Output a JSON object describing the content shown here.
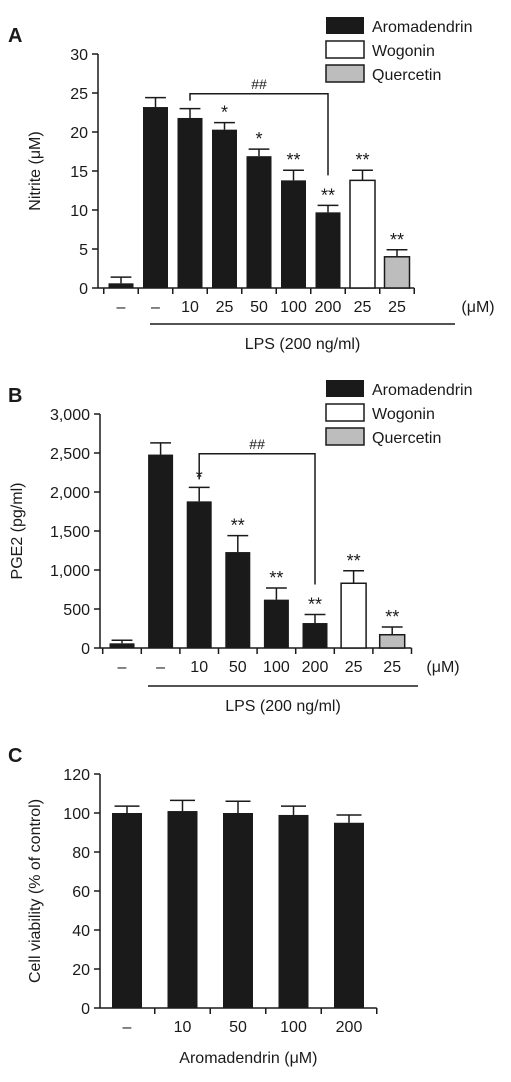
{
  "legend": {
    "entries": [
      {
        "label": "Aromadendrin",
        "color": "#1a1a1a"
      },
      {
        "label": "Wogonin",
        "color": "#ffffff"
      },
      {
        "label": "Quercetin",
        "color": "#bdbdbd"
      }
    ]
  },
  "chart_data": [
    {
      "panel": "A",
      "type": "bar",
      "ylabel": "Nitrite (μM)",
      "ylim": [
        0,
        30
      ],
      "yticks": [
        "0",
        "5",
        "10",
        "15",
        "20",
        "25",
        "30"
      ],
      "categories": [
        "–",
        "–",
        "10",
        "25",
        "50",
        "100",
        "200",
        "25",
        "25"
      ],
      "unit_label": "(μM)",
      "group_label": "LPS (200 ng/ml)",
      "values": [
        0.6,
        23.2,
        21.8,
        20.3,
        16.9,
        13.8,
        9.7,
        13.8,
        4.0
      ],
      "errors": [
        0.8,
        1.2,
        1.2,
        0.9,
        0.9,
        1.3,
        0.9,
        1.3,
        0.9
      ],
      "fills": [
        "dark",
        "dark",
        "dark",
        "dark",
        "dark",
        "dark",
        "dark",
        "white",
        "gray"
      ],
      "significance": [
        "",
        "",
        "",
        "*",
        "*",
        "**",
        "**",
        "**",
        "**"
      ],
      "bracket": {
        "label": "##",
        "from": 2,
        "to": 6
      }
    },
    {
      "panel": "B",
      "type": "bar",
      "ylabel": "PGE2 (pg/ml)",
      "ylim": [
        0,
        3000
      ],
      "yticks": [
        "0",
        "500",
        "1,000",
        "1,500",
        "2,000",
        "2,500",
        "3,000"
      ],
      "categories": [
        "–",
        "–",
        "10",
        "50",
        "100",
        "200",
        "25",
        "25"
      ],
      "unit_label": "(μM)",
      "group_label": "LPS (200 ng/ml)",
      "values": [
        60,
        2480,
        1880,
        1230,
        620,
        320,
        830,
        170
      ],
      "errors": [
        40,
        150,
        180,
        210,
        150,
        110,
        160,
        100
      ],
      "fills": [
        "dark",
        "dark",
        "dark",
        "dark",
        "dark",
        "dark",
        "white",
        "gray"
      ],
      "significance": [
        "",
        "",
        "*",
        "**",
        "**",
        "**",
        "**",
        "**"
      ],
      "bracket": {
        "label": "##",
        "from": 2,
        "to": 5
      }
    },
    {
      "panel": "C",
      "type": "bar",
      "ylabel": "Cell viability (% of control)",
      "ylim": [
        0,
        120
      ],
      "yticks": [
        "0",
        "20",
        "40",
        "60",
        "80",
        "100",
        "120"
      ],
      "categories": [
        "–",
        "10",
        "50",
        "100",
        "200"
      ],
      "xlabel": "Aromadendrin (μM)",
      "values": [
        100,
        101,
        100,
        99,
        95
      ],
      "errors": [
        3.5,
        5.5,
        6,
        4.5,
        4
      ],
      "fills": [
        "dark",
        "dark",
        "dark",
        "dark",
        "dark"
      ],
      "significance": [
        "",
        "",
        "",
        "",
        ""
      ]
    }
  ]
}
